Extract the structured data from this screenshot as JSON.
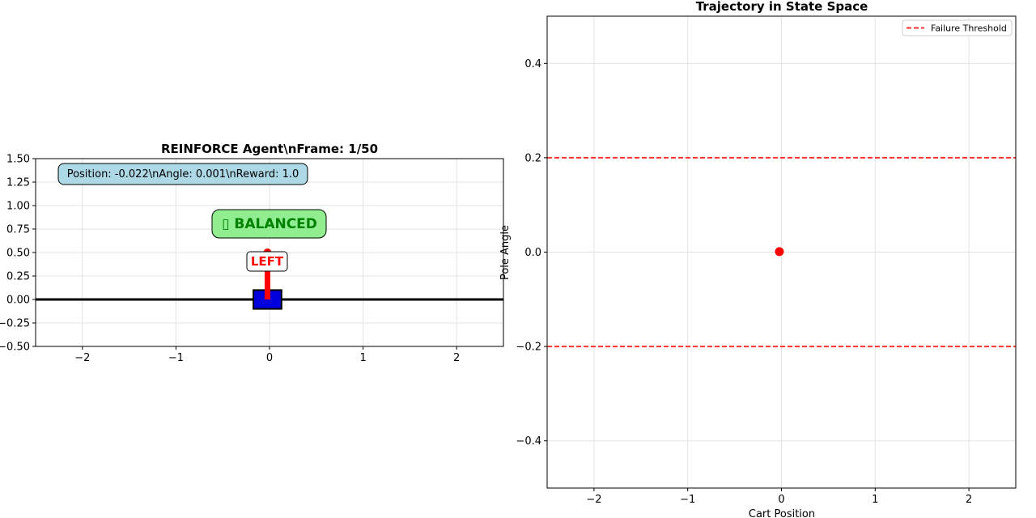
{
  "chart_data": [
    {
      "type": "scatter",
      "title": "REINFORCE Agent\\nFrame: 1/50",
      "xlim": [
        -2.5,
        2.5
      ],
      "ylim": [
        -0.5,
        1.5
      ],
      "xticks": [
        -2,
        -1,
        0,
        1,
        2
      ],
      "yticks": [
        -0.5,
        -0.25,
        0.0,
        0.25,
        0.5,
        0.75,
        1.0,
        1.25,
        1.5
      ],
      "xtick_labels": [
        "−2",
        "−1",
        "0",
        "1",
        "2"
      ],
      "ytick_labels": [
        "−0.50",
        "−0.25",
        "0.00",
        "0.25",
        "0.50",
        "0.75",
        "1.00",
        "1.25",
        "1.50"
      ],
      "grid": true,
      "track_y": 0.0,
      "cart": {
        "x": -0.022,
        "y": 0.0,
        "width": 0.3,
        "height": 0.2,
        "color": "#0000dd"
      },
      "pole": {
        "x0": -0.022,
        "y0": 0.0,
        "x1": -0.022,
        "y1": 0.5,
        "color": "#ff0000"
      },
      "info_text": "Position: -0.022\\nAngle: 0.001\\nReward: 1.0",
      "status_text": "▯ BALANCED",
      "status_color": "#008000",
      "status_bg": "#90ee90",
      "info_bg": "#add8e6",
      "action_text": "LEFT",
      "action_color": "#ff0000"
    },
    {
      "type": "scatter",
      "title": "Trajectory in State Space",
      "xlabel": "Cart Position",
      "ylabel": "Pole Angle",
      "xlim": [
        -2.5,
        2.5
      ],
      "ylim": [
        -0.5,
        0.5
      ],
      "xticks": [
        -2,
        -1,
        0,
        1,
        2
      ],
      "yticks": [
        -0.4,
        -0.2,
        0.0,
        0.2,
        0.4
      ],
      "xtick_labels": [
        "−2",
        "−1",
        "0",
        "1",
        "2"
      ],
      "ytick_labels": [
        "−0.4",
        "−0.2",
        "0.0",
        "0.2",
        "0.4"
      ],
      "grid": true,
      "points": [
        {
          "x": -0.022,
          "y": 0.001,
          "color": "#ff0000"
        }
      ],
      "thresholds": [
        0.2,
        -0.2
      ],
      "threshold_color": "#ff3333",
      "legend": {
        "label": "Failure Threshold",
        "placement": "top-right"
      }
    }
  ]
}
